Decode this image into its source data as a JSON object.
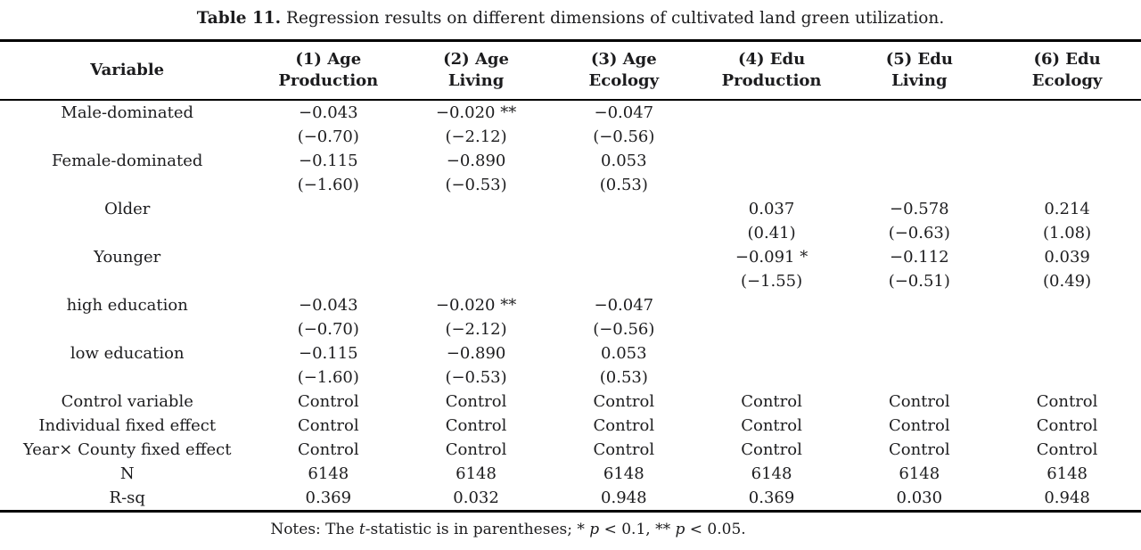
{
  "caption": {
    "label": "Table 11.",
    "text": "Regression results on different dimensions of cultivated land green utilization."
  },
  "table": {
    "columns": [
      {
        "line1": "Variable",
        "line2": ""
      },
      {
        "line1": "(1) Age",
        "line2": "Production"
      },
      {
        "line1": "(2) Age",
        "line2": "Living"
      },
      {
        "line1": "(3) Age",
        "line2": "Ecology"
      },
      {
        "line1": "(4) Edu",
        "line2": "Production"
      },
      {
        "line1": "(5) Edu",
        "line2": "Living"
      },
      {
        "line1": "(6) Edu",
        "line2": "Ecology"
      }
    ],
    "rows": [
      {
        "kind": "coef",
        "cells": [
          "Male-dominated",
          "−0.043",
          "−0.020 **",
          "−0.047",
          "",
          "",
          ""
        ]
      },
      {
        "kind": "tstat",
        "cells": [
          "",
          "(−0.70)",
          "(−2.12)",
          "(−0.56)",
          "",
          "",
          ""
        ]
      },
      {
        "kind": "coef",
        "cells": [
          "Female-dominated",
          "−0.115",
          "−0.890",
          "0.053",
          "",
          "",
          ""
        ]
      },
      {
        "kind": "tstat",
        "cells": [
          "",
          "(−1.60)",
          "(−0.53)",
          "(0.53)",
          "",
          "",
          ""
        ]
      },
      {
        "kind": "coef",
        "cells": [
          "Older",
          "",
          "",
          "",
          "0.037",
          "−0.578",
          "0.214"
        ]
      },
      {
        "kind": "tstat",
        "cells": [
          "",
          "",
          "",
          "",
          "(0.41)",
          "(−0.63)",
          "(1.08)"
        ]
      },
      {
        "kind": "coef",
        "cells": [
          "Younger",
          "",
          "",
          "",
          "−0.091 *",
          "−0.112",
          "0.039"
        ]
      },
      {
        "kind": "tstat",
        "cells": [
          "",
          "",
          "",
          "",
          "(−1.55)",
          "(−0.51)",
          "(0.49)"
        ]
      },
      {
        "kind": "coef",
        "cells": [
          "high education",
          "−0.043",
          "−0.020 **",
          "−0.047",
          "",
          "",
          ""
        ]
      },
      {
        "kind": "tstat",
        "cells": [
          "",
          "(−0.70)",
          "(−2.12)",
          "(−0.56)",
          "",
          "",
          ""
        ]
      },
      {
        "kind": "coef",
        "cells": [
          "low education",
          "−0.115",
          "−0.890",
          "0.053",
          "",
          "",
          ""
        ]
      },
      {
        "kind": "tstat",
        "cells": [
          "",
          "(−1.60)",
          "(−0.53)",
          "(0.53)",
          "",
          "",
          ""
        ]
      },
      {
        "kind": "single",
        "cells": [
          "Control variable",
          "Control",
          "Control",
          "Control",
          "Control",
          "Control",
          "Control"
        ]
      },
      {
        "kind": "single",
        "cells": [
          "Individual fixed effect",
          "Control",
          "Control",
          "Control",
          "Control",
          "Control",
          "Control"
        ]
      },
      {
        "kind": "single",
        "cells": [
          "Year× County fixed effect",
          "Control",
          "Control",
          "Control",
          "Control",
          "Control",
          "Control"
        ]
      },
      {
        "kind": "single",
        "cells": [
          "N",
          "6148",
          "6148",
          "6148",
          "6148",
          "6148",
          "6148"
        ]
      },
      {
        "kind": "single",
        "cells": [
          "R-sq",
          "0.369",
          "0.032",
          "0.948",
          "0.369",
          "0.030",
          "0.948"
        ]
      }
    ]
  },
  "notes": {
    "segments": [
      {
        "text": "Notes: The ",
        "italic": false
      },
      {
        "text": "t",
        "italic": true
      },
      {
        "text": "-statistic is in parentheses; * ",
        "italic": false
      },
      {
        "text": "p",
        "italic": true
      },
      {
        "text": " < 0.1, ** ",
        "italic": false
      },
      {
        "text": "p",
        "italic": true
      },
      {
        "text": " < 0.05.",
        "italic": false
      }
    ]
  }
}
